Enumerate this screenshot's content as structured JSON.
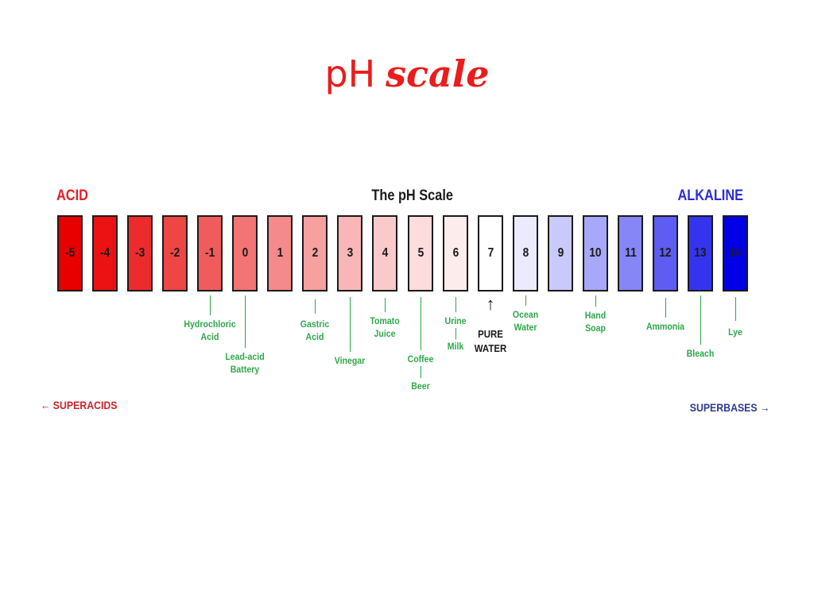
{
  "slide": {
    "title_part1": "pH",
    "title_part2": "scale"
  },
  "diagram": {
    "left_header": "ACID",
    "center_title": "The pH Scale",
    "right_header": "ALKALINE",
    "left_footer": "← SUPERACIDS",
    "right_footer": "SUPERBASES →"
  },
  "scale": [
    {
      "value": "-5",
      "color": "#e60000"
    },
    {
      "value": "-4",
      "color": "#ea1212"
    },
    {
      "value": "-3",
      "color": "#ec2c2c"
    },
    {
      "value": "-2",
      "color": "#ee4545"
    },
    {
      "value": "-1",
      "color": "#f05c5c"
    },
    {
      "value": "0",
      "color": "#f27474"
    },
    {
      "value": "1",
      "color": "#f48a8a"
    },
    {
      "value": "2",
      "color": "#f6a0a0"
    },
    {
      "value": "3",
      "color": "#f8b6b6"
    },
    {
      "value": "4",
      "color": "#fac9c9"
    },
    {
      "value": "5",
      "color": "#fcdcdc"
    },
    {
      "value": "6",
      "color": "#fdecec"
    },
    {
      "value": "7",
      "color": "#ffffff"
    },
    {
      "value": "8",
      "color": "#ebebfd"
    },
    {
      "value": "9",
      "color": "#c9c9fb"
    },
    {
      "value": "10",
      "color": "#a8a8f8"
    },
    {
      "value": "11",
      "color": "#8686f6"
    },
    {
      "value": "12",
      "color": "#5d5df3"
    },
    {
      "value": "13",
      "color": "#3434ef"
    },
    {
      "value": "14",
      "color": "#0000e6"
    }
  ],
  "substances": [
    {
      "text": "Hydrochloric\nAcid",
      "ph": "-1"
    },
    {
      "text": "Lead-acid\nBattery",
      "ph": "0"
    },
    {
      "text": "Gastric\nAcid",
      "ph": "2"
    },
    {
      "text": "Vinegar",
      "ph": "3"
    },
    {
      "text": "Tomato\nJuice",
      "ph": "4"
    },
    {
      "text": "Coffee",
      "ph": "5"
    },
    {
      "text": "Beer",
      "ph": "5"
    },
    {
      "text": "Urine",
      "ph": "6"
    },
    {
      "text": "Milk",
      "ph": "6"
    },
    {
      "text": "PURE\nWATER",
      "ph": "7"
    },
    {
      "text": "Ocean\nWater",
      "ph": "8"
    },
    {
      "text": "Hand\nSoap",
      "ph": "10"
    },
    {
      "text": "Ammonia",
      "ph": "12"
    },
    {
      "text": "Bleach",
      "ph": "13"
    },
    {
      "text": "Lye",
      "ph": "14"
    }
  ]
}
